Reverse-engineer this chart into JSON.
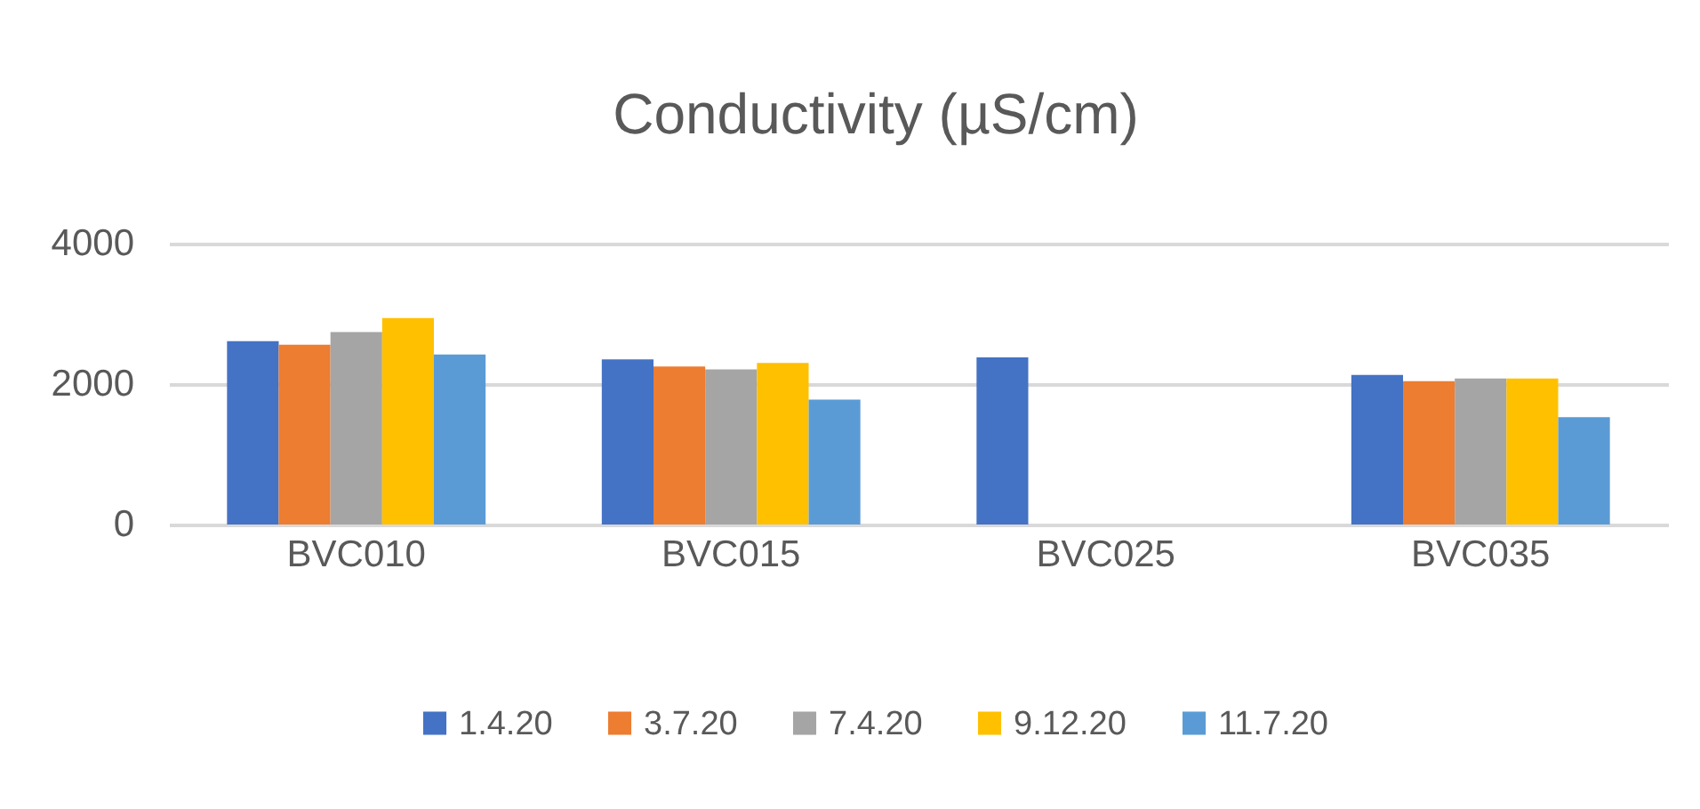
{
  "chart_data": {
    "type": "bar",
    "title": "Conductivity (µS/cm)",
    "categories": [
      "BVC010",
      "BVC015",
      "BVC025",
      "BVC035"
    ],
    "series": [
      {
        "name": "1.4.20",
        "color": "#4472c4",
        "values": [
          2610,
          2350,
          2380,
          2130
        ]
      },
      {
        "name": "3.7.20",
        "color": "#ed7d31",
        "values": [
          2560,
          2250,
          null,
          2040
        ]
      },
      {
        "name": "7.4.20",
        "color": "#a5a5a5",
        "values": [
          2740,
          2210,
          null,
          2080
        ]
      },
      {
        "name": "9.12.20",
        "color": "#ffc000",
        "values": [
          2940,
          2300,
          null,
          2080
        ]
      },
      {
        "name": "11.7.20",
        "color": "#5b9bd5",
        "values": [
          2420,
          1780,
          null,
          1530
        ]
      }
    ],
    "ylim": [
      0,
      4000
    ],
    "yticks": [
      0,
      2000,
      4000
    ],
    "grid": "y",
    "legend": "bottom"
  }
}
